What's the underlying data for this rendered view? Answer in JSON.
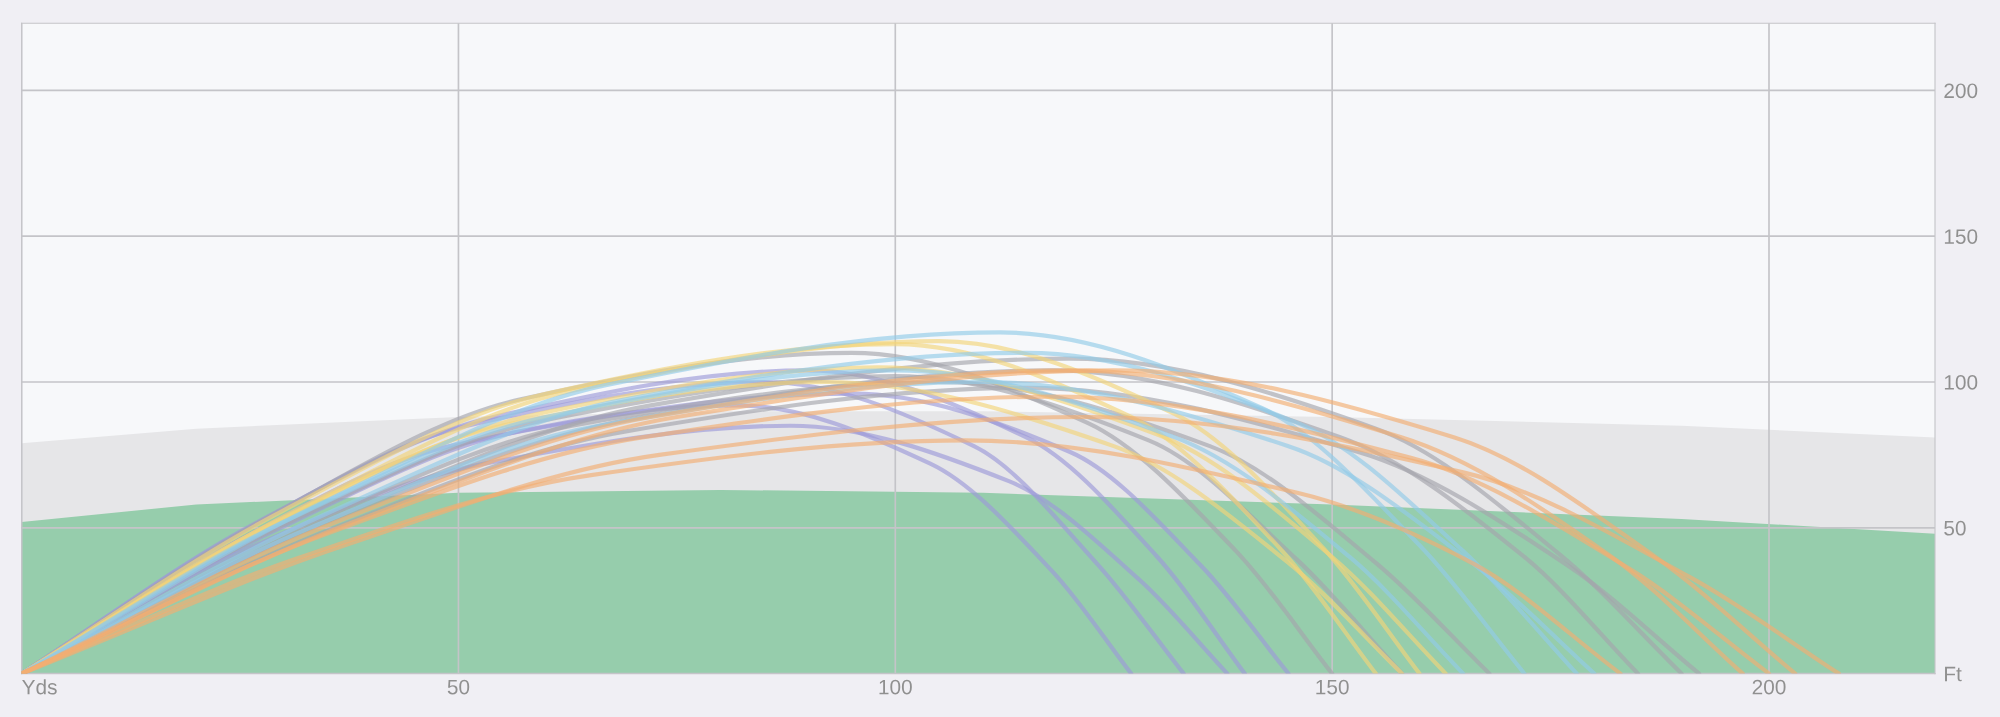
{
  "chart_data": {
    "type": "line",
    "xlim": [
      0,
      219
    ],
    "ylim": [
      0,
      223
    ],
    "xticks": [
      {
        "value": 0,
        "label": "Yds"
      },
      50,
      100,
      150,
      200
    ],
    "yticks": [
      {
        "value": 0,
        "label": "Ft"
      },
      50,
      100,
      150,
      200
    ],
    "grid": true,
    "legend": false,
    "line_style": "solid",
    "marker": "none",
    "series": [
      {
        "type": "area",
        "color": "#e6e6e8",
        "x": [
          0,
          20,
          50,
          80,
          110,
          150,
          190,
          219
        ],
        "values": [
          79,
          84,
          88,
          90,
          90,
          88,
          85,
          81
        ]
      },
      {
        "type": "area",
        "color": "#96cdac",
        "x": [
          0,
          20,
          50,
          80,
          110,
          150,
          190,
          219
        ],
        "values": [
          52,
          58,
          62,
          63,
          62,
          58,
          53,
          48
        ]
      },
      {
        "color": "#9d9ad8",
        "x": [
          0,
          25,
          49,
          82,
          104,
          118,
          127
        ],
        "values": [
          0,
          46,
          78,
          92,
          72,
          35,
          0
        ]
      },
      {
        "color": "#9d9ad8",
        "x": [
          0,
          26,
          51,
          85,
          109,
          123,
          133
        ],
        "values": [
          0,
          50,
          85,
          100,
          78,
          38,
          0
        ]
      },
      {
        "color": "#9d9ad8",
        "x": [
          0,
          27,
          54,
          90,
          115,
          130,
          140
        ],
        "values": [
          0,
          52,
          88,
          104,
          81,
          40,
          0
        ]
      },
      {
        "color": "#9d9ad8",
        "x": [
          0,
          29,
          57,
          95,
          120,
          135,
          145
        ],
        "values": [
          0,
          49,
          83,
          96,
          76,
          37,
          0
        ]
      },
      {
        "color": "#9d9ad8",
        "x": [
          0,
          26,
          53,
          88,
          113,
          128,
          138
        ],
        "values": [
          0,
          43,
          72,
          85,
          66,
          32,
          0
        ]
      },
      {
        "color": "#a4a4ac",
        "x": [
          0,
          29,
          57,
          95,
          122,
          139,
          150
        ],
        "values": [
          0,
          55,
          94,
          110,
          86,
          42,
          0
        ]
      },
      {
        "color": "#a4a4ac",
        "x": [
          0,
          30,
          60,
          100,
          129,
          146,
          158
        ],
        "values": [
          0,
          51,
          87,
          102,
          80,
          39,
          0
        ]
      },
      {
        "color": "#a4a4ac",
        "x": [
          0,
          32,
          63,
          105,
          136,
          155,
          168
        ],
        "values": [
          0,
          50,
          85,
          100,
          78,
          38,
          0
        ]
      },
      {
        "color": "#a4a4ac",
        "x": [
          0,
          35,
          71,
          118,
          151,
          172,
          185
        ],
        "values": [
          0,
          52,
          88,
          104,
          81,
          40,
          0
        ]
      },
      {
        "color": "#a4a4ac",
        "x": [
          0,
          36,
          72,
          120,
          155,
          176,
          190
        ],
        "values": [
          0,
          54,
          92,
          108,
          84,
          41,
          0
        ]
      },
      {
        "color": "#a4a4ac",
        "x": [
          0,
          35,
          69,
          115,
          153,
          177,
          192
        ],
        "values": [
          0,
          49,
          83,
          98,
          76,
          37,
          0
        ]
      },
      {
        "color": "#f2d47a",
        "x": [
          0,
          30,
          60,
          100,
          127,
          144,
          155
        ],
        "values": [
          0,
          56,
          96,
          113,
          88,
          43,
          0
        ]
      },
      {
        "color": "#f2d47a",
        "x": [
          0,
          32,
          63,
          105,
          132,
          149,
          160
        ],
        "values": [
          0,
          57,
          97,
          114,
          89,
          43,
          0
        ]
      },
      {
        "color": "#f2d47a",
        "x": [
          0,
          29,
          59,
          98,
          130,
          150,
          163
        ],
        "values": [
          0,
          52,
          89,
          105,
          82,
          40,
          0
        ]
      },
      {
        "color": "#f2d47a",
        "x": [
          0,
          28,
          55,
          92,
          125,
          145,
          158
        ],
        "values": [
          0,
          50,
          85,
          100,
          78,
          38,
          0
        ]
      },
      {
        "color": "#92cbe8",
        "x": [
          0,
          34,
          67,
          112,
          142,
          160,
          172
        ],
        "values": [
          0,
          58,
          99,
          117,
          91,
          44,
          0
        ]
      },
      {
        "color": "#92cbe8",
        "x": [
          0,
          35,
          69,
          115,
          146,
          165,
          178
        ],
        "values": [
          0,
          55,
          94,
          110,
          86,
          42,
          0
        ]
      },
      {
        "color": "#92cbe8",
        "x": [
          0,
          30,
          60,
          100,
          132,
          152,
          165
        ],
        "values": [
          0,
          52,
          88,
          104,
          81,
          40,
          0
        ]
      },
      {
        "color": "#92cbe8",
        "x": [
          0,
          33,
          66,
          110,
          145,
          166,
          180
        ],
        "values": [
          0,
          50,
          85,
          100,
          78,
          38,
          0
        ]
      },
      {
        "color": "#f2ad72",
        "x": [
          0,
          36,
          72,
          120,
          158,
          182,
          197
        ],
        "values": [
          0,
          52,
          88,
          104,
          81,
          40,
          0
        ]
      },
      {
        "color": "#f2ad72",
        "x": [
          0,
          38,
          75,
          125,
          164,
          187,
          203
        ],
        "values": [
          0,
          52,
          88,
          104,
          81,
          40,
          0
        ]
      },
      {
        "color": "#f2ad72",
        "x": [
          0,
          35,
          71,
          118,
          159,
          184,
          200
        ],
        "values": [
          0,
          48,
          81,
          95,
          74,
          36,
          0
        ]
      },
      {
        "color": "#f2ad72",
        "x": [
          0,
          37,
          73,
          122,
          165,
          191,
          208
        ],
        "values": [
          0,
          44,
          75,
          88,
          69,
          33,
          0
        ]
      },
      {
        "color": "#f2ad72",
        "x": [
          0,
          32,
          65,
          108,
          146,
          166,
          183
        ],
        "values": [
          0,
          40,
          68,
          80,
          62,
          38,
          0
        ]
      }
    ]
  }
}
